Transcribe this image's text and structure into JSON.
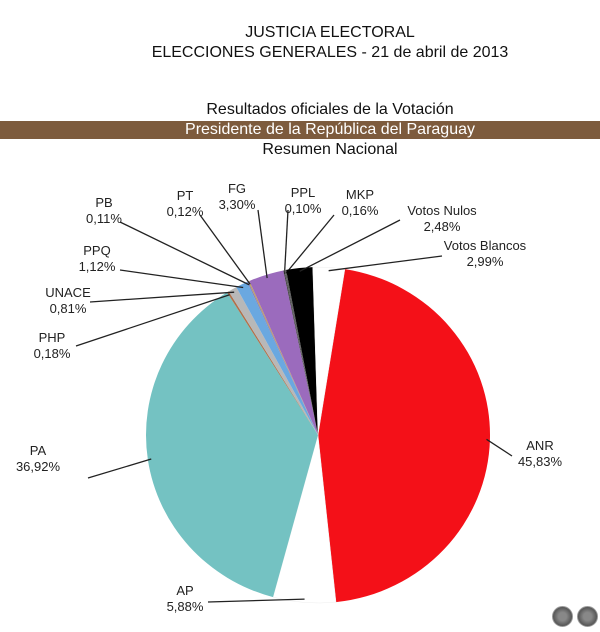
{
  "header": {
    "line1": "JUSTICIA ELECTORAL",
    "line2": "ELECCIONES GENERALES - 21 de abril de 2013",
    "line3": "Resultados oficiales de la Votación",
    "banner": "Presidente de la República del Paraguay",
    "line4": "Resumen Nacional"
  },
  "chart_data": {
    "type": "pie",
    "title": "Resumen Nacional",
    "slices": [
      {
        "label": "ANR",
        "value": 45.83,
        "text": "45,83%",
        "color": "#f41018"
      },
      {
        "label": "AP",
        "value": 5.88,
        "text": "5,88%",
        "color": "#ffffff"
      },
      {
        "label": "PA",
        "value": 36.92,
        "text": "36,92%",
        "color": "#74c2c2"
      },
      {
        "label": "PHP",
        "value": 0.18,
        "text": "0,18%",
        "color": "#b0704a"
      },
      {
        "label": "UNACE",
        "value": 0.81,
        "text": "0,81%",
        "color": "#b8b8b8"
      },
      {
        "label": "PPQ",
        "value": 1.12,
        "text": "1,12%",
        "color": "#6aa8e0"
      },
      {
        "label": "PB",
        "value": 0.11,
        "text": "0,11%",
        "color": "#8080c0"
      },
      {
        "label": "PT",
        "value": 0.12,
        "text": "0,12%",
        "color": "#c0a060"
      },
      {
        "label": "FG",
        "value": 3.3,
        "text": "3,30%",
        "color": "#9b6bbd"
      },
      {
        "label": "PPL",
        "value": 0.1,
        "text": "0,10%",
        "color": "#404040"
      },
      {
        "label": "MKP",
        "value": 0.16,
        "text": "0,16%",
        "color": "#606060"
      },
      {
        "label": "Votos Nulos",
        "value": 2.48,
        "text": "2,48%",
        "color": "#000000"
      },
      {
        "label": "Votos Blancos",
        "value": 2.99,
        "text": "2,99%",
        "color": "#ffffff"
      }
    ]
  },
  "controls": {
    "prev": "prev-icon",
    "next": "more-icon"
  }
}
